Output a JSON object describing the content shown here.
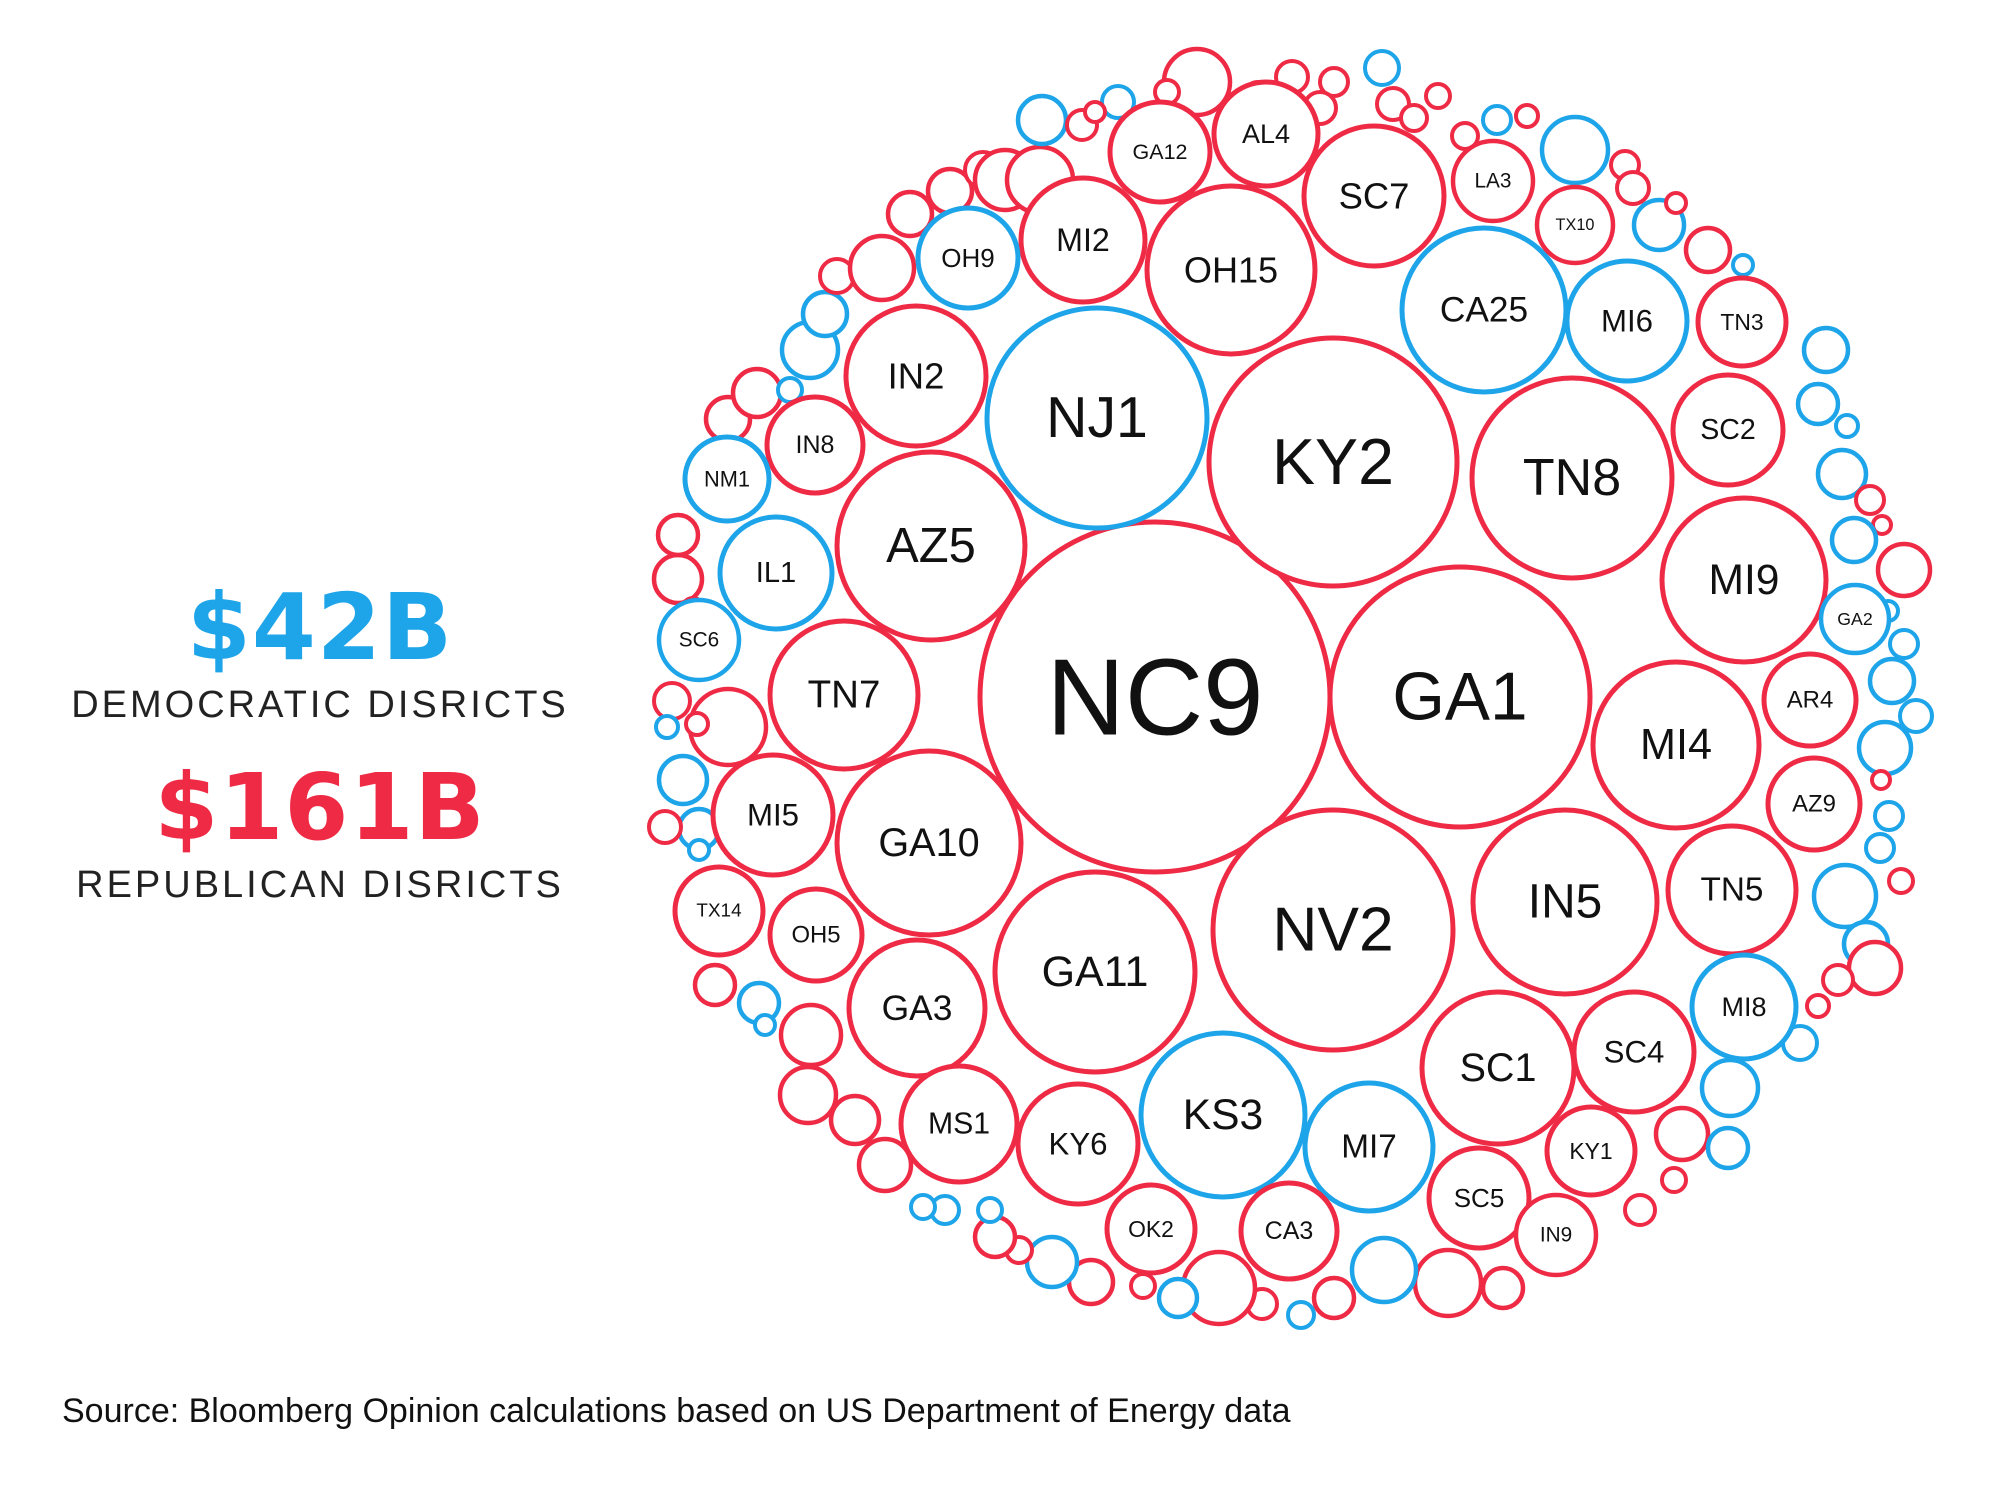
{
  "legend": {
    "democratic": {
      "amount": "$42B",
      "label": "DEMOCRATIC DISRICTS",
      "color": "#1ea4e9"
    },
    "republican": {
      "amount": "$161B",
      "label": "REPUBLICAN DISRICTS",
      "color": "#ee2a45"
    }
  },
  "source": "Source: Bloomberg Opinion calculations based on US Department of Energy data",
  "chart_data": {
    "type": "bubble",
    "units": "$B",
    "totals": {
      "democratic": 42,
      "republican": 161
    },
    "labeled_districts": [
      {
        "label": "NC9",
        "party": "republican"
      },
      {
        "label": "GA1",
        "party": "republican"
      },
      {
        "label": "KY2",
        "party": "republican"
      },
      {
        "label": "NV2",
        "party": "republican"
      },
      {
        "label": "GA11",
        "party": "republican"
      },
      {
        "label": "NJ1",
        "party": "democratic"
      },
      {
        "label": "TN8",
        "party": "republican"
      },
      {
        "label": "IN5",
        "party": "republican"
      },
      {
        "label": "GA10",
        "party": "republican"
      },
      {
        "label": "MI4",
        "party": "republican"
      },
      {
        "label": "AZ5",
        "party": "republican"
      },
      {
        "label": "MI9",
        "party": "republican"
      },
      {
        "label": "OH15",
        "party": "republican"
      },
      {
        "label": "CA25",
        "party": "democratic"
      },
      {
        "label": "KS3",
        "party": "democratic"
      },
      {
        "label": "TN7",
        "party": "republican"
      },
      {
        "label": "SC7",
        "party": "republican"
      },
      {
        "label": "SC1",
        "party": "republican"
      },
      {
        "label": "IN2",
        "party": "republican"
      },
      {
        "label": "GA3",
        "party": "republican"
      },
      {
        "label": "MI6",
        "party": "democratic"
      },
      {
        "label": "MI2",
        "party": "republican"
      },
      {
        "label": "SC4",
        "party": "republican"
      },
      {
        "label": "MI7",
        "party": "democratic"
      },
      {
        "label": "KY6",
        "party": "republican"
      },
      {
        "label": "TN5",
        "party": "republican"
      },
      {
        "label": "MI5",
        "party": "republican"
      },
      {
        "label": "SC2",
        "party": "republican"
      },
      {
        "label": "GA12",
        "party": "republican"
      },
      {
        "label": "AL4",
        "party": "republican"
      },
      {
        "label": "MS1",
        "party": "republican"
      },
      {
        "label": "IL1",
        "party": "democratic"
      },
      {
        "label": "OH9",
        "party": "democratic"
      },
      {
        "label": "MI8",
        "party": "democratic"
      },
      {
        "label": "TN3",
        "party": "republican"
      },
      {
        "label": "AR4",
        "party": "republican"
      },
      {
        "label": "AZ9",
        "party": "republican"
      },
      {
        "label": "SC5",
        "party": "republican"
      },
      {
        "label": "KY1",
        "party": "republican"
      },
      {
        "label": "OK2",
        "party": "republican"
      },
      {
        "label": "CA3",
        "party": "republican"
      },
      {
        "label": "LA3",
        "party": "republican"
      },
      {
        "label": "IN8",
        "party": "republican"
      },
      {
        "label": "OH5",
        "party": "republican"
      },
      {
        "label": "TX10",
        "party": "republican"
      },
      {
        "label": "IN9",
        "party": "republican"
      },
      {
        "label": "TX14",
        "party": "republican"
      },
      {
        "label": "NM1",
        "party": "democratic"
      },
      {
        "label": "SC6",
        "party": "democratic"
      },
      {
        "label": "GA2",
        "party": "democratic"
      }
    ]
  }
}
